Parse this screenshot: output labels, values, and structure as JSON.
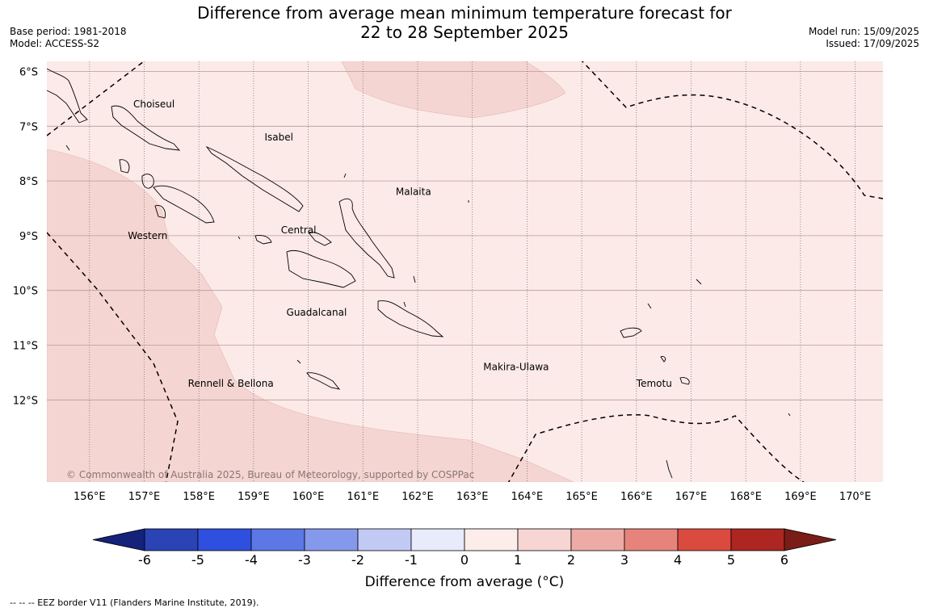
{
  "header": {
    "title_line1": "Difference from average mean minimum temperature forecast for",
    "title_line2": "22 to 28 September 2025",
    "base_period": "Base period: 1981-2018",
    "model": "Model: ACCESS-S2",
    "model_run": "Model run: 15/09/2025",
    "issued": "Issued: 17/09/2025"
  },
  "map": {
    "lat_labels": [
      "6°S",
      "7°S",
      "8°S",
      "9°S",
      "10°S",
      "11°S",
      "12°S"
    ],
    "lon_labels": [
      "156°E",
      "157°E",
      "158°E",
      "159°E",
      "160°E",
      "161°E",
      "162°E",
      "163°E",
      "164°E",
      "165°E",
      "166°E",
      "167°E",
      "168°E",
      "169°E",
      "170°E"
    ],
    "places": [
      {
        "name": "Choiseul",
        "lon": 156.8,
        "lat": -6.6
      },
      {
        "name": "Isabel",
        "lon": 159.2,
        "lat": -7.2
      },
      {
        "name": "Malaita",
        "lon": 161.6,
        "lat": -8.2
      },
      {
        "name": "Central",
        "lon": 159.5,
        "lat": -8.9
      },
      {
        "name": "Western",
        "lon": 156.7,
        "lat": -9.0
      },
      {
        "name": "Guadalcanal",
        "lon": 159.6,
        "lat": -10.4
      },
      {
        "name": "Makira-Ulawa",
        "lon": 163.2,
        "lat": -11.4
      },
      {
        "name": "Rennell & Bellona",
        "lon": 157.8,
        "lat": -11.7
      },
      {
        "name": "Temotu",
        "lon": 166.0,
        "lat": -11.7
      }
    ],
    "copyright": "© Commonwealth of Australia 2025, Bureau of Meteorology, supported by COSPPac",
    "colors": {
      "fill_0_1": "#fbeae8",
      "fill_1_2": "#f5d5d2",
      "coast": "#000000",
      "grid_lat": "#b89a9a",
      "grid_lon": "#666666"
    }
  },
  "colorbar": {
    "colors": [
      "#15227a",
      "#2a43b5",
      "#2f50de",
      "#5c78e5",
      "#8599ec",
      "#c2c9f4",
      "#e8ebfc",
      "#fcecea",
      "#f6d5d2",
      "#eeaba6",
      "#e6847c",
      "#db4a3e",
      "#ad2621",
      "#7a1d18"
    ],
    "tick_labels": [
      "-6",
      "-5",
      "-4",
      "-3",
      "-2",
      "-1",
      "0",
      "1",
      "2",
      "3",
      "4",
      "5",
      "6"
    ],
    "label": "Difference from average (°C)"
  },
  "footnote": "--  --  -- EEZ border V11 (Flanders Marine Institute, 2019)."
}
